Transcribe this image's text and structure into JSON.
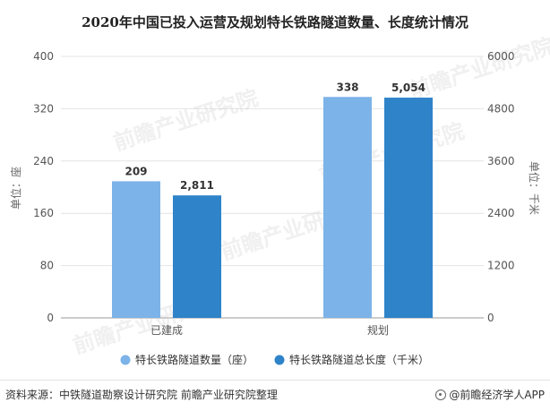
{
  "chart_data": {
    "type": "bar",
    "title": "2020年中国已投入运营及规划特长铁路隧道数量、长度统计情况",
    "categories": [
      "已建成",
      "规划"
    ],
    "series": [
      {
        "name": "特长铁路隧道数量（座）",
        "axis": "left",
        "values": [
          209,
          338
        ],
        "labels": [
          "209",
          "338"
        ],
        "color": "#7cb3e8"
      },
      {
        "name": "特长铁路隧道总长度（千米）",
        "axis": "right",
        "values": [
          2811,
          5054
        ],
        "labels": [
          "2,811",
          "5,054"
        ],
        "color": "#2e83c9"
      }
    ],
    "ylabel_left": "单位：座",
    "ylabel_right": "单位：千米",
    "ylim_left": [
      0,
      400
    ],
    "ylim_right": [
      0,
      6000
    ],
    "yticks_left": [
      "0",
      "80",
      "160",
      "240",
      "320",
      "400"
    ],
    "yticks_right": [
      "0",
      "1200",
      "2400",
      "3600",
      "4800",
      "6000"
    ],
    "grid": true,
    "legend_position": "bottom"
  },
  "footer": {
    "source": "资料来源：中铁隧道勘察设计研究院 前瞻产业研究院整理",
    "brand": "@前瞻经济学人APP"
  },
  "watermark": "前瞻产业研究院"
}
